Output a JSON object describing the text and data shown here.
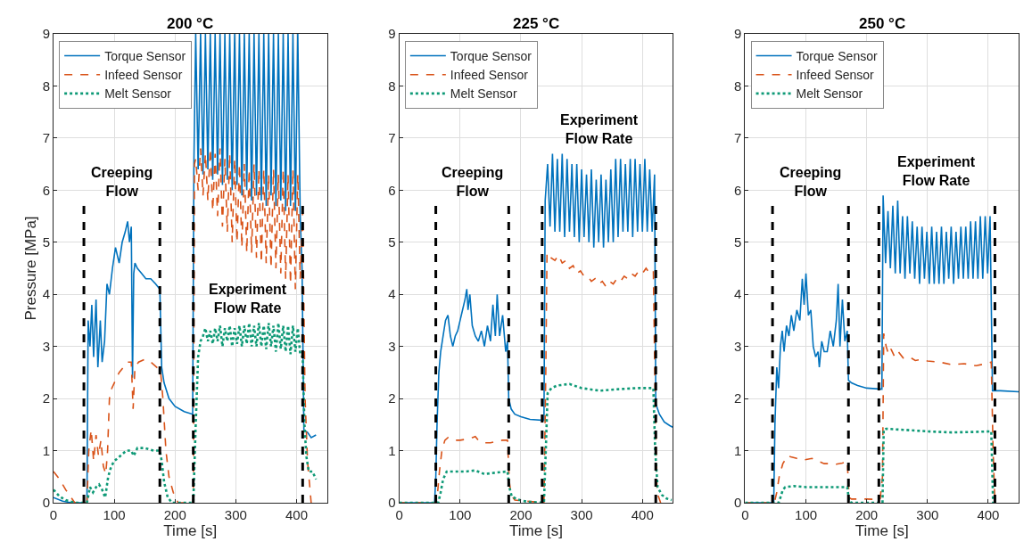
{
  "chart_data": [
    {
      "type": "line",
      "title": "200 °C",
      "xlabel": "Time [s]",
      "ylabel": "Pressure [MPa]",
      "xlim": [
        0,
        450
      ],
      "ylim": [
        0,
        9
      ],
      "xticks": [
        0,
        100,
        200,
        300,
        400
      ],
      "yticks": [
        0,
        1,
        2,
        3,
        4,
        5,
        6,
        7,
        8,
        9
      ],
      "grid": true,
      "legend": "top left",
      "annotations": [
        "Creeping\nFlow",
        "Experiment\nFlow Rate"
      ],
      "series": [
        {
          "name": "Torque Sensor",
          "color": "#0072bd",
          "line_style": "solid",
          "x": [
            0,
            15,
            30,
            50,
            55,
            57,
            60,
            63,
            66,
            70,
            73,
            77,
            80,
            84,
            88,
            92,
            97,
            102,
            108,
            113,
            118,
            122,
            125,
            128,
            130,
            132,
            134,
            138,
            145,
            152,
            160,
            168,
            175,
            178,
            182,
            190,
            200,
            215,
            229,
            231,
            234,
            238,
            242,
            246,
            250,
            254,
            258,
            262,
            266,
            270,
            274,
            278,
            282,
            286,
            290,
            294,
            298,
            302,
            306,
            310,
            314,
            318,
            322,
            326,
            330,
            334,
            338,
            342,
            346,
            350,
            354,
            358,
            362,
            366,
            370,
            374,
            378,
            382,
            386,
            390,
            394,
            398,
            402,
            406,
            409,
            412,
            418,
            424,
            432
          ],
          "values": [
            0.1,
            0.03,
            0,
            0,
            0,
            3.5,
            3.0,
            3.8,
            2.8,
            3.9,
            2.6,
            3.5,
            2.7,
            3.1,
            4.2,
            4.0,
            4.5,
            4.9,
            4.6,
            5.0,
            5.2,
            5.4,
            5.0,
            5.3,
            2.4,
            4.4,
            4.6,
            4.5,
            4.4,
            4.3,
            4.3,
            4.2,
            4.1,
            2.6,
            2.3,
            2.0,
            1.85,
            1.75,
            1.7,
            6.5,
            9,
            6.4,
            9,
            6.3,
            9,
            6.4,
            9,
            6.2,
            9,
            6.3,
            9,
            6.1,
            9,
            6.2,
            9,
            6.0,
            9,
            6.1,
            9,
            5.9,
            9,
            6.0,
            9,
            5.8,
            9,
            5.9,
            9,
            5.8,
            9,
            5.7,
            9,
            5.9,
            9,
            5.7,
            9,
            5.8,
            9,
            5.6,
            9,
            5.7,
            9,
            5.6,
            9,
            5.5,
            4.5,
            1.4,
            1.35,
            1.25,
            1.3
          ]
        },
        {
          "name": "Infeed Sensor",
          "color": "#d95319",
          "line_style": "dashed",
          "x": [
            0,
            10,
            20,
            35,
            55,
            58,
            62,
            66,
            70,
            74,
            78,
            82,
            86,
            89,
            92,
            96,
            100,
            108,
            115,
            122,
            128,
            131,
            134,
            140,
            150,
            160,
            170,
            176,
            180,
            185,
            190,
            197,
            205,
            230,
            232,
            234,
            238,
            242,
            246,
            250,
            254,
            258,
            262,
            266,
            270,
            274,
            278,
            282,
            286,
            290,
            294,
            298,
            302,
            306,
            310,
            314,
            318,
            322,
            326,
            330,
            334,
            338,
            342,
            346,
            350,
            354,
            358,
            362,
            366,
            370,
            374,
            378,
            382,
            386,
            390,
            394,
            398,
            402,
            406,
            410,
            414,
            418,
            424
          ],
          "values": [
            0.6,
            0.45,
            0.25,
            0,
            0,
            1.0,
            1.4,
            0.8,
            1.3,
            0.9,
            1.2,
            0.7,
            0.55,
            1.0,
            2.0,
            2.2,
            2.3,
            2.5,
            2.6,
            2.7,
            2.7,
            1.8,
            2.6,
            2.7,
            2.75,
            2.7,
            2.6,
            2.55,
            2.0,
            1.0,
            0.5,
            0.2,
            0,
            0,
            6.5,
            6.6,
            6.0,
            6.8,
            5.9,
            6.7,
            5.8,
            6.8,
            5.6,
            6.7,
            5.5,
            6.8,
            5.3,
            6.6,
            5.2,
            6.7,
            5.0,
            6.6,
            5.0,
            6.5,
            4.9,
            6.5,
            4.8,
            6.4,
            4.8,
            6.5,
            4.7,
            6.4,
            4.6,
            6.4,
            4.6,
            6.3,
            4.5,
            6.4,
            4.5,
            6.3,
            4.4,
            6.4,
            4.3,
            6.3,
            4.2,
            6.4,
            4.1,
            6.3,
            4.3,
            5.6,
            2.0,
            0.8,
            0
          ]
        },
        {
          "name": "Melt Sensor",
          "color": "#0f9a77",
          "line_style": "dotted",
          "x": [
            0,
            10,
            20,
            35,
            55,
            60,
            65,
            70,
            75,
            80,
            85,
            90,
            95,
            100,
            110,
            120,
            128,
            132,
            138,
            150,
            165,
            175,
            178,
            182,
            188,
            195,
            230,
            234,
            238,
            242,
            246,
            250,
            254,
            258,
            262,
            266,
            270,
            274,
            278,
            282,
            286,
            290,
            294,
            298,
            302,
            306,
            310,
            314,
            318,
            322,
            326,
            330,
            334,
            338,
            342,
            346,
            350,
            354,
            358,
            362,
            366,
            370,
            374,
            378,
            382,
            386,
            390,
            394,
            398,
            402,
            406,
            410,
            413,
            416,
            420,
            426,
            432
          ],
          "values": [
            0.25,
            0.12,
            0.05,
            0,
            0,
            0.3,
            0.2,
            0.3,
            0.35,
            0.25,
            0.1,
            0.5,
            0.7,
            0.8,
            0.9,
            1.0,
            1.0,
            0.9,
            1.05,
            1.05,
            1.0,
            1.0,
            0.8,
            0.4,
            0.1,
            0,
            0,
            1.5,
            2.8,
            3.1,
            3.2,
            3.35,
            3.1,
            3.3,
            3.05,
            3.35,
            3.1,
            3.4,
            3.0,
            3.35,
            3.1,
            3.4,
            3.0,
            3.35,
            3.05,
            3.4,
            3.0,
            3.4,
            3.05,
            3.45,
            3.0,
            3.4,
            3.0,
            3.45,
            3.0,
            3.4,
            2.95,
            3.45,
            3.0,
            3.4,
            2.9,
            3.45,
            2.95,
            3.4,
            2.9,
            3.4,
            2.85,
            3.4,
            2.9,
            3.35,
            2.85,
            2.8,
            1.5,
            0.9,
            0.6,
            0.6,
            0.45
          ]
        },
        {
          "color": "#000000",
          "line_style": "dashed",
          "x": [
            50,
            50
          ],
          "values": [
            0,
            5.7
          ]
        },
        {
          "color": "#000000",
          "line_style": "dashed",
          "x": [
            175,
            175
          ],
          "values": [
            0,
            5.7
          ]
        },
        {
          "color": "#000000",
          "line_style": "dashed",
          "x": [
            230,
            230
          ],
          "values": [
            0,
            5.7
          ]
        },
        {
          "color": "#000000",
          "line_style": "dashed",
          "x": [
            410,
            410
          ],
          "values": [
            0,
            5.7
          ]
        }
      ]
    },
    {
      "type": "line",
      "title": "225 °C",
      "xlabel": "Time [s]",
      "xlim": [
        0,
        450
      ],
      "ylim": [
        0,
        9
      ],
      "xticks": [
        0,
        100,
        200,
        300,
        400
      ],
      "yticks": [
        0,
        1,
        2,
        3,
        4,
        5,
        6,
        7,
        8,
        9
      ],
      "grid": true,
      "legend": "top left",
      "annotations": [
        "Creeping\nFlow",
        "Experiment\nFlow Rate"
      ],
      "series": [
        {
          "name": "Torque Sensor",
          "color": "#0072bd",
          "line_style": "solid",
          "x": [
            0,
            58,
            60,
            62,
            65,
            68,
            72,
            76,
            80,
            84,
            88,
            92,
            96,
            100,
            104,
            108,
            111,
            113,
            116,
            120,
            125,
            130,
            135,
            140,
            145,
            150,
            154,
            158,
            161,
            165,
            170,
            175,
            178,
            180,
            184,
            190,
            200,
            215,
            238,
            240,
            244,
            248,
            252,
            256,
            260,
            264,
            268,
            272,
            276,
            280,
            284,
            288,
            292,
            296,
            300,
            304,
            308,
            312,
            316,
            320,
            324,
            328,
            332,
            336,
            340,
            344,
            348,
            352,
            356,
            360,
            364,
            368,
            372,
            376,
            380,
            384,
            388,
            392,
            396,
            400,
            404,
            408,
            412,
            416,
            420,
            422,
            428,
            436,
            445,
            450
          ],
          "values": [
            0,
            0,
            0.5,
            1.5,
            2.5,
            2.9,
            3.2,
            3.5,
            3.6,
            3.2,
            3.0,
            3.2,
            3.3,
            3.5,
            3.7,
            3.9,
            4.1,
            3.7,
            4.0,
            3.4,
            3.2,
            3.1,
            3.3,
            3.0,
            3.4,
            3.1,
            3.8,
            3.2,
            4.0,
            3.2,
            3.6,
            2.9,
            3.1,
            2.0,
            1.8,
            1.7,
            1.65,
            1.6,
            1.58,
            5.8,
            6.5,
            5.3,
            6.7,
            5.2,
            6.6,
            5.2,
            6.7,
            5.1,
            6.6,
            5.2,
            6.5,
            5.1,
            6.5,
            5.0,
            6.4,
            5.1,
            6.3,
            5.0,
            6.4,
            4.9,
            6.2,
            5.0,
            6.3,
            4.9,
            6.2,
            5.0,
            6.4,
            5.0,
            6.6,
            5.1,
            6.6,
            5.2,
            6.5,
            5.2,
            6.6,
            5.1,
            6.6,
            5.2,
            6.5,
            5.2,
            6.6,
            5.2,
            6.4,
            5.2,
            6.3,
            1.9,
            1.7,
            1.55,
            1.48,
            1.45
          ]
        },
        {
          "name": "Infeed Sensor",
          "color": "#d95319",
          "line_style": "dashed",
          "x": [
            0,
            60,
            63,
            66,
            70,
            75,
            80,
            90,
            100,
            110,
            120,
            125,
            130,
            140,
            150,
            160,
            170,
            178,
            181,
            184,
            190,
            238,
            241,
            243,
            250,
            256,
            262,
            268,
            274,
            280,
            286,
            292,
            298,
            304,
            310,
            316,
            322,
            328,
            334,
            340,
            346,
            352,
            358,
            364,
            370,
            376,
            382,
            388,
            394,
            400,
            406,
            412,
            418,
            421,
            424,
            430
          ],
          "values": [
            0,
            0,
            0.2,
            0.6,
            1.0,
            1.2,
            1.25,
            1.2,
            1.2,
            1.22,
            1.25,
            1.27,
            1.2,
            1.15,
            1.15,
            1.18,
            1.2,
            1.2,
            0.4,
            0.15,
            0.05,
            0,
            2.5,
            4.8,
            4.7,
            4.65,
            4.75,
            4.6,
            4.65,
            4.5,
            4.55,
            4.4,
            4.45,
            4.35,
            4.35,
            4.25,
            4.3,
            4.2,
            4.25,
            4.15,
            4.25,
            4.2,
            4.3,
            4.25,
            4.35,
            4.3,
            4.4,
            4.35,
            4.45,
            4.4,
            4.5,
            4.4,
            4.45,
            2.0,
            0.2,
            0
          ]
        },
        {
          "name": "Melt Sensor",
          "color": "#0f9a77",
          "line_style": "dotted",
          "x": [
            0,
            64,
            68,
            72,
            78,
            90,
            110,
            125,
            140,
            160,
            178,
            181,
            185,
            195,
            210,
            238,
            241,
            244,
            250,
            260,
            280,
            300,
            330,
            360,
            390,
            418,
            421,
            425,
            432,
            440,
            448
          ],
          "values": [
            0,
            0,
            0.2,
            0.45,
            0.6,
            0.6,
            0.6,
            0.62,
            0.55,
            0.58,
            0.6,
            0.3,
            0.12,
            0.06,
            0.02,
            0,
            1.0,
            2.1,
            2.2,
            2.25,
            2.28,
            2.2,
            2.15,
            2.18,
            2.2,
            2.2,
            1.0,
            0.3,
            0.15,
            0.08,
            0.05
          ]
        },
        {
          "color": "#000000",
          "line_style": "dashed",
          "x": [
            60,
            60
          ],
          "values": [
            0,
            5.7
          ]
        },
        {
          "color": "#000000",
          "line_style": "dashed",
          "x": [
            180,
            180
          ],
          "values": [
            0,
            5.7
          ]
        },
        {
          "color": "#000000",
          "line_style": "dashed",
          "x": [
            235,
            235
          ],
          "values": [
            0,
            5.7
          ]
        },
        {
          "color": "#000000",
          "line_style": "dashed",
          "x": [
            422,
            422
          ],
          "values": [
            0,
            5.7
          ]
        }
      ]
    },
    {
      "type": "line",
      "title": "250 °C",
      "xlabel": "Time [s]",
      "xlim": [
        0,
        450
      ],
      "ylim": [
        0,
        9
      ],
      "xticks": [
        0,
        100,
        200,
        300,
        400
      ],
      "yticks": [
        0,
        1,
        2,
        3,
        4,
        5,
        6,
        7,
        8,
        9
      ],
      "grid": true,
      "legend": "top left",
      "annotations": [
        "Creeping\nFlow",
        "Experiment\nFlow Rate"
      ],
      "series": [
        {
          "name": "Torque Sensor",
          "color": "#0072bd",
          "line_style": "solid",
          "x": [
            0,
            47,
            49,
            52,
            55,
            58,
            61,
            64,
            68,
            72,
            76,
            80,
            85,
            90,
            94,
            97,
            100,
            104,
            108,
            112,
            116,
            120,
            122,
            126,
            130,
            135,
            140,
            145,
            150,
            153,
            156,
            160,
            164,
            168,
            170,
            175,
            185,
            200,
            225,
            227,
            231,
            235,
            239,
            243,
            247,
            251,
            255,
            259,
            263,
            267,
            271,
            275,
            279,
            283,
            287,
            291,
            295,
            299,
            303,
            307,
            311,
            315,
            319,
            323,
            327,
            331,
            335,
            339,
            343,
            347,
            351,
            355,
            359,
            363,
            367,
            371,
            375,
            379,
            383,
            387,
            391,
            395,
            399,
            403,
            407,
            420,
            450
          ],
          "values": [
            0,
            0,
            1.5,
            2.6,
            2.2,
            3.0,
            3.3,
            2.9,
            3.4,
            3.2,
            3.6,
            3.3,
            3.7,
            3.5,
            4.3,
            3.8,
            4.4,
            3.6,
            3.7,
            3.0,
            2.8,
            2.9,
            2.6,
            3.1,
            2.9,
            2.9,
            3.3,
            3.0,
            3.5,
            4.2,
            3.0,
            3.9,
            3.1,
            3.3,
            2.35,
            2.3,
            2.25,
            2.2,
            2.18,
            5.9,
            4.6,
            5.6,
            4.5,
            5.7,
            4.4,
            5.8,
            4.4,
            5.5,
            4.3,
            5.5,
            4.4,
            5.4,
            4.3,
            5.3,
            4.2,
            5.3,
            4.3,
            5.2,
            4.2,
            5.3,
            4.2,
            5.2,
            4.2,
            5.3,
            4.2,
            5.2,
            4.3,
            5.3,
            4.2,
            5.2,
            4.3,
            5.3,
            4.3,
            5.3,
            4.3,
            5.4,
            4.3,
            5.4,
            4.3,
            5.5,
            4.3,
            5.5,
            4.4,
            5.5,
            2.15,
            2.15,
            2.13
          ]
        },
        {
          "name": "Infeed Sensor",
          "color": "#d95319",
          "line_style": "dashed",
          "x": [
            0,
            48,
            52,
            56,
            62,
            70,
            75,
            85,
            95,
            110,
            120,
            130,
            140,
            150,
            160,
            168,
            171,
            175,
            200,
            222,
            226,
            228,
            232,
            236,
            240,
            246,
            252,
            260,
            270,
            280,
            290,
            300,
            320,
            340,
            360,
            380,
            400,
            405,
            408,
            411
          ],
          "values": [
            0,
            0,
            0.2,
            0.5,
            0.75,
            0.9,
            0.88,
            0.85,
            0.82,
            0.85,
            0.8,
            0.75,
            0.75,
            0.74,
            0.76,
            0.8,
            0.1,
            0.07,
            0.07,
            0.06,
            0.5,
            3.25,
            3.0,
            2.85,
            2.95,
            2.8,
            2.9,
            2.78,
            2.8,
            2.73,
            2.75,
            2.72,
            2.7,
            2.65,
            2.67,
            2.63,
            2.68,
            2.7,
            1.0,
            0
          ]
        },
        {
          "name": "Melt Sensor",
          "color": "#0f9a77",
          "line_style": "dotted",
          "x": [
            0,
            55,
            58,
            62,
            66,
            80,
            100,
            120,
            140,
            168,
            171,
            175,
            226,
            228,
            232,
            260,
            300,
            340,
            380,
            405,
            408
          ],
          "values": [
            0,
            0,
            0.1,
            0.25,
            0.3,
            0.32,
            0.3,
            0.3,
            0.3,
            0.3,
            0.03,
            0,
            0,
            1.4,
            1.42,
            1.4,
            1.37,
            1.35,
            1.36,
            1.37,
            0
          ]
        },
        {
          "color": "#000000",
          "line_style": "dashed",
          "x": [
            45,
            45
          ],
          "values": [
            0,
            5.7
          ]
        },
        {
          "color": "#000000",
          "line_style": "dashed",
          "x": [
            170,
            170
          ],
          "values": [
            0,
            5.7
          ]
        },
        {
          "color": "#000000",
          "line_style": "dashed",
          "x": [
            220,
            220
          ],
          "values": [
            0,
            5.7
          ]
        },
        {
          "color": "#000000",
          "line_style": "dashed",
          "x": [
            411,
            411
          ],
          "values": [
            0,
            5.7
          ]
        }
      ]
    }
  ]
}
